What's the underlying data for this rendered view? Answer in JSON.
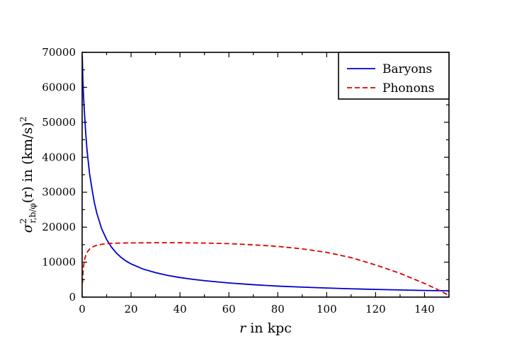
{
  "chart_data": {
    "type": "line",
    "title": "",
    "xlabel": "r in kpc",
    "ylabel": "σ²r,b/φ(r) in (km/s)²",
    "ylabel_parts": {
      "sym": "σ",
      "sup": "2",
      "sub": "r,b/φ",
      "arg": "(r) in (km/s)",
      "unit_sup": "2"
    },
    "xlim": [
      0,
      150
    ],
    "ylim": [
      0,
      70000
    ],
    "x_ticks": [
      0,
      20,
      40,
      60,
      80,
      100,
      120,
      140
    ],
    "y_ticks": [
      0,
      10000,
      20000,
      30000,
      40000,
      50000,
      60000,
      70000
    ],
    "grid": false,
    "legend_position": "top-right",
    "series": [
      {
        "name": "Baryons",
        "color": "#0000cc",
        "style": "solid",
        "x": [
          0.05,
          0.3,
          0.6,
          1,
          1.5,
          2,
          3,
          4,
          5,
          6,
          8,
          10,
          12,
          14,
          16,
          18,
          20,
          25,
          30,
          35,
          40,
          45,
          50,
          60,
          70,
          80,
          90,
          100,
          110,
          120,
          130,
          140,
          150
        ],
        "y": [
          69000,
          62000,
          57000,
          52000,
          46500,
          42000,
          35500,
          31000,
          27000,
          24000,
          19500,
          16500,
          14300,
          12600,
          11300,
          10300,
          9500,
          8000,
          7000,
          6200,
          5600,
          5100,
          4700,
          4050,
          3550,
          3150,
          2850,
          2600,
          2380,
          2200,
          2050,
          1900,
          1800
        ]
      },
      {
        "name": "Phonons",
        "color": "#dd0000",
        "style": "dashed",
        "x": [
          0.1,
          0.5,
          1,
          1.5,
          2,
          3,
          4,
          5,
          7,
          10,
          15,
          20,
          30,
          40,
          50,
          60,
          70,
          80,
          90,
          100,
          110,
          120,
          130,
          140,
          145,
          148,
          150
        ],
        "y": [
          4000,
          8500,
          10800,
          12000,
          12800,
          13700,
          14200,
          14600,
          15000,
          15300,
          15450,
          15500,
          15550,
          15550,
          15450,
          15300,
          14950,
          14500,
          13800,
          12800,
          11300,
          9200,
          6800,
          3900,
          2300,
          1200,
          500
        ]
      }
    ]
  }
}
